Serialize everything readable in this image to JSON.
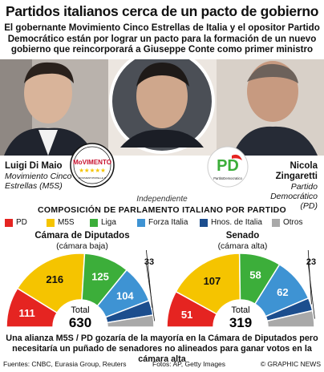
{
  "title": "Partidos italianos cerca de un pacto de gobierno",
  "subtitle": "El gobernante Movimiento Cinco Estrellas de Italia y el opositor Partido Democrático están por lograr un pacto para la formación de un nuevo gobierno que reincorporará a Giuseppe Conte como primer ministro",
  "leaders": {
    "left": {
      "name": "Luigi Di Maio",
      "role": "Movimiento Cinco Estrellas (M5S)"
    },
    "center": {
      "name": "Giuseppe Conte",
      "role": "Independiente"
    },
    "right": {
      "name": "Nicola Zingaretti",
      "role": "Partido Democrático (PD)"
    }
  },
  "logos": {
    "m5s": {
      "text": "MoVIMENTO",
      "stars": "★★★★★",
      "url": "MOVIMENTO5STELLE.IT"
    },
    "pd": {
      "text": "PD",
      "caption": "PartitoDemocratico"
    }
  },
  "legend_title": "COMPOSICIÓN DE PARLAMENTO ITALIANO POR PARTIDO",
  "colors": {
    "PD": "#e52421",
    "M5S": "#f5c400",
    "Liga": "#3cae3a",
    "Forza Italia": "#3e93d3",
    "Hnos. de Italia": "#1c4e8e",
    "Otros": "#a9a9a9"
  },
  "chart_data": [
    {
      "type": "pie",
      "title": "Cámara de Diputados",
      "subtitle": "(cámara baja)",
      "total_label": "Total",
      "total": 630,
      "categories": [
        "PD",
        "M5S",
        "Liga",
        "Forza Italia",
        "Hnos. de Italia",
        "Otros"
      ],
      "values": [
        111,
        216,
        125,
        104,
        41,
        33
      ]
    },
    {
      "type": "pie",
      "title": "Senado",
      "subtitle": "(cámara alta)",
      "total_label": "Total",
      "total": 319,
      "categories": [
        "PD",
        "M5S",
        "Liga",
        "Forza Italia",
        "Hnos. de Italia",
        "Otros"
      ],
      "values": [
        51,
        107,
        58,
        62,
        18,
        23
      ]
    }
  ],
  "footnote": "Una alianza M5S / PD gozaría de la mayoría en la Cámara de Diputados pero necesitaría un puñado de senadores no alineados para ganar votos en la cámara alta",
  "sources": "Fuentes: CNBC, Eurasia Group, Reuters",
  "credits": "Fotos: AP, Getty Images",
  "agency": "© GRAPHIC NEWS"
}
